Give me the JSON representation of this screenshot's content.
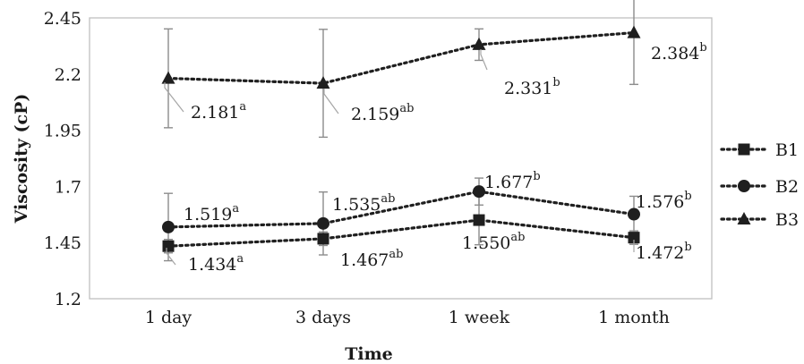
{
  "chart_data": {
    "type": "line",
    "title": "",
    "xlabel": "Time",
    "ylabel": "Viscosity (cP)",
    "categories": [
      "1 day",
      "3 days",
      "1 week",
      "1  month"
    ],
    "ylim": [
      1.2,
      2.45
    ],
    "yticks": [
      "1.2",
      "1.45",
      "1.7",
      "1.95",
      "2.2",
      "2.45"
    ],
    "legend_position": "right",
    "series": [
      {
        "name": "B1",
        "marker": "square",
        "values": [
          1.434,
          1.467,
          1.55,
          1.472
        ],
        "error": [
          0.03,
          0.03,
          0.11,
          0.03
        ],
        "labels": [
          "1.434",
          "1.467",
          "1.550",
          "1.472"
        ],
        "superscripts": [
          "a",
          "ab",
          "ab",
          "b"
        ]
      },
      {
        "name": "B2",
        "marker": "circle",
        "values": [
          1.519,
          1.535,
          1.677,
          1.576
        ],
        "error": [
          0.15,
          0.14,
          0.06,
          0.08
        ],
        "labels": [
          "1.519",
          "1.535",
          "1.677",
          "1.576"
        ],
        "superscripts": [
          "a",
          "ab",
          "b",
          "b"
        ]
      },
      {
        "name": "B3",
        "marker": "triangle",
        "values": [
          2.181,
          2.159,
          2.331,
          2.384
        ],
        "error": [
          0.22,
          0.24,
          0.07,
          0.23
        ],
        "labels": [
          "2.181",
          "2.159",
          "2.331",
          "2.384"
        ],
        "superscripts": [
          "a",
          "ab",
          "b",
          "b"
        ]
      }
    ]
  },
  "colors": {
    "series": "#1f1f1f",
    "error_bar": "#8c8c8c",
    "plot_border": "#bfbfbf",
    "leader_line": "#a6a6a6"
  }
}
